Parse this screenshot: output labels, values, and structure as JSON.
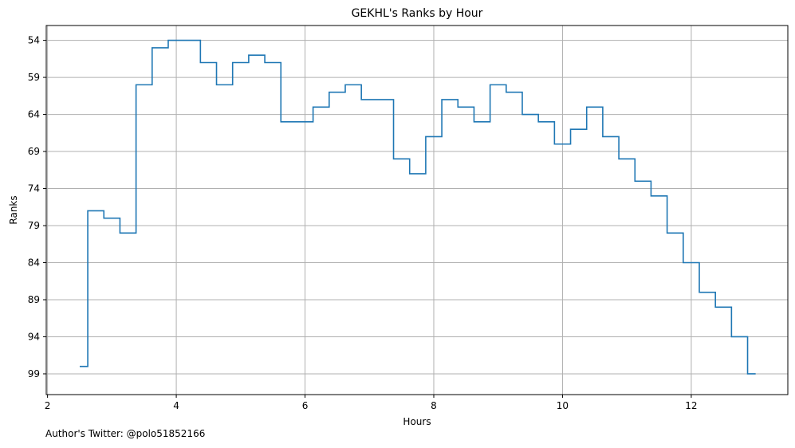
{
  "chart_data": {
    "type": "line",
    "drawstyle": "steps-mid",
    "title": "GEKHL's Ranks by Hour",
    "xlabel": "Hours",
    "ylabel": "Ranks",
    "xlim": [
      1.98,
      13.5
    ],
    "ylim": [
      101.8,
      52.0
    ],
    "y_inverted": true,
    "xticks": [
      2,
      4,
      6,
      8,
      10,
      12
    ],
    "xtick_labels": [
      "2",
      "4",
      "6",
      "8",
      "10",
      "12"
    ],
    "yticks": [
      54,
      59,
      64,
      69,
      74,
      79,
      84,
      89,
      94,
      99
    ],
    "ytick_labels": [
      "54",
      "59",
      "64",
      "69",
      "74",
      "79",
      "84",
      "89",
      "94",
      "99"
    ],
    "grid": true,
    "color": "#1f77b4",
    "x": [
      2.5,
      2.75,
      3.0,
      3.25,
      3.5,
      3.75,
      4.0,
      4.25,
      4.5,
      4.75,
      5.0,
      5.25,
      5.5,
      5.75,
      6.0,
      6.25,
      6.5,
      6.75,
      7.0,
      7.25,
      7.5,
      7.75,
      8.0,
      8.25,
      8.5,
      8.75,
      9.0,
      9.25,
      9.5,
      9.75,
      10.0,
      10.25,
      10.5,
      10.75,
      11.0,
      11.25,
      11.5,
      11.75,
      12.0,
      12.25,
      12.5,
      12.75,
      13.0
    ],
    "y": [
      98,
      77,
      78,
      80,
      60,
      55,
      54,
      54,
      57,
      60,
      57,
      56,
      57,
      65,
      65,
      63,
      61,
      60,
      62,
      62,
      70,
      72,
      67,
      62,
      63,
      65,
      60,
      61,
      64,
      65,
      68,
      66,
      63,
      67,
      70,
      73,
      75,
      80,
      84,
      88,
      90,
      94,
      99
    ]
  },
  "footer": {
    "note": "Author's Twitter: @polo51852166"
  }
}
